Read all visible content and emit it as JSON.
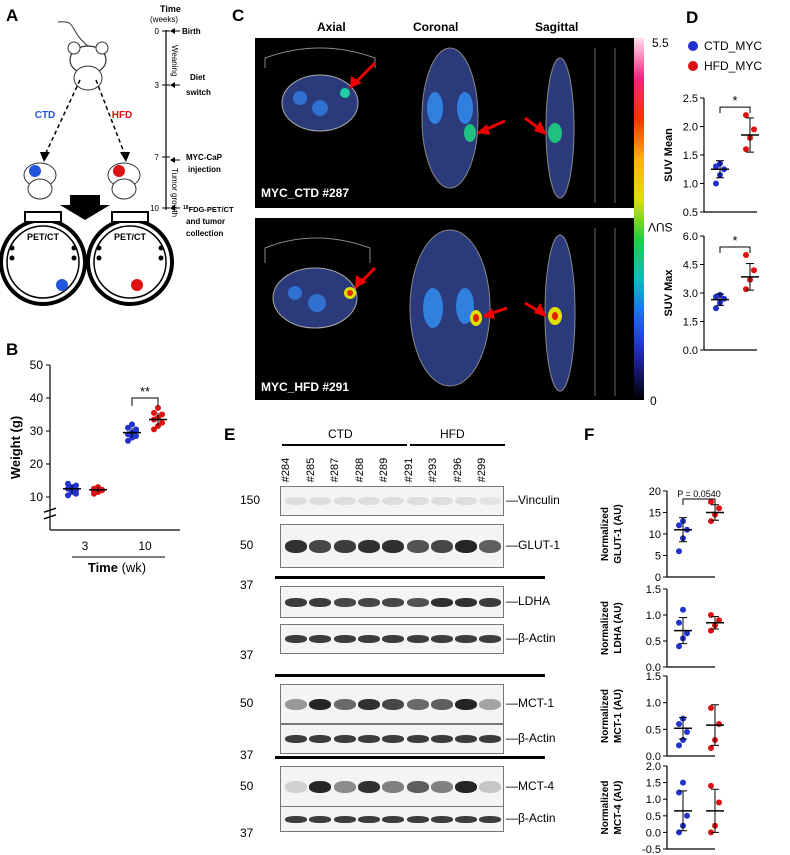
{
  "panel_letters": {
    "A": "A",
    "B": "B",
    "C": "C",
    "D": "D",
    "E": "E",
    "F": "F"
  },
  "panelA": {
    "time_header": "Time",
    "time_unit": "(weeks)",
    "ticks": [
      {
        "value": "0",
        "label": "Birth"
      },
      {
        "value": "3",
        "label": "Diet switch"
      },
      {
        "value": "7",
        "label": "MYC-CaP injection"
      },
      {
        "value": "10",
        "label": "18FDG-PET/CT and tumor collection"
      }
    ],
    "phase_weaning": "Weaning",
    "phase_tumor": "Tumor growth",
    "ctd_label": "CTD",
    "hfd_label": "HFD",
    "petct_label": "PET/CT",
    "ctd_color": "#2255dd",
    "hfd_color": "#dd1111"
  },
  "panelC": {
    "views": [
      "Axial",
      "Coronal",
      "Sagittal"
    ],
    "rows": [
      {
        "label": "MYC_CTD #287"
      },
      {
        "label": "MYC_HFD #291"
      }
    ],
    "colorbar_max": "5.5",
    "colorbar_min": "0",
    "colorbar_label": "SUV"
  },
  "panelE": {
    "group_ctd": "CTD",
    "group_hfd": "HFD",
    "lanes": [
      "#284",
      "#285",
      "#287",
      "#288",
      "#289",
      "#291",
      "#293",
      "#296",
      "#299"
    ],
    "blots": [
      {
        "name": "Vinculin",
        "marker": "150",
        "intensity": [
          0.15,
          0.15,
          0.15,
          0.15,
          0.15,
          0.15,
          0.15,
          0.15,
          0.12
        ]
      },
      {
        "name": "GLUT-1",
        "marker": "50",
        "intensity": [
          0.9,
          0.8,
          0.85,
          0.9,
          0.9,
          0.75,
          0.8,
          0.95,
          0.7
        ]
      },
      {
        "name": "LDHA",
        "marker": "37",
        "intensity": [
          0.85,
          0.85,
          0.8,
          0.8,
          0.8,
          0.75,
          0.9,
          0.9,
          0.85
        ]
      },
      {
        "name": "β-Actin",
        "marker": "37",
        "intensity": [
          0.85,
          0.85,
          0.85,
          0.85,
          0.85,
          0.85,
          0.85,
          0.85,
          0.85
        ]
      },
      {
        "name": "MCT-1",
        "marker": "50",
        "intensity": [
          0.45,
          0.95,
          0.65,
          0.9,
          0.8,
          0.65,
          0.7,
          0.95,
          0.4
        ]
      },
      {
        "name": "β-Actin",
        "marker": "37",
        "intensity": [
          0.85,
          0.85,
          0.85,
          0.85,
          0.85,
          0.85,
          0.85,
          0.85,
          0.85
        ]
      },
      {
        "name": "MCT-4",
        "marker": "50",
        "intensity": [
          0.2,
          0.95,
          0.5,
          0.9,
          0.55,
          0.7,
          0.55,
          0.95,
          0.25
        ]
      },
      {
        "name": "β-Actin",
        "marker": "37",
        "intensity": [
          0.85,
          0.85,
          0.85,
          0.85,
          0.85,
          0.85,
          0.85,
          0.85,
          0.85
        ]
      }
    ]
  },
  "chart_data": [
    {
      "id": "B",
      "type": "scatter",
      "ylabel": "Weight (g)",
      "xlabel": "Time",
      "xlabel_unit": "(wk)",
      "categories": [
        "3",
        "10"
      ],
      "ylim": [
        0,
        50
      ],
      "yticks": [
        10,
        20,
        30,
        40,
        50
      ],
      "series": [
        {
          "color": "#2233cc",
          "points": {
            "3": [
              10.5,
              11.5,
              12,
              12.5,
              13,
              13.5,
              14,
              12.8,
              11
            ],
            "10": [
              27,
              28,
              28.5,
              29,
              29.5,
              30,
              31,
              32,
              30.5
            ]
          }
        },
        {
          "color": "#dd1111",
          "points": {
            "3": [
              11,
              11.5,
              12,
              12.5,
              13,
              12.2,
              11.8
            ],
            "10": [
              30.5,
              31.5,
              32.5,
              33.5,
              34,
              35,
              35.5,
              37
            ]
          }
        }
      ],
      "means": {
        "3": [
          12.5,
          12.2
        ],
        "10": [
          29.5,
          33.5
        ]
      },
      "sds": {
        "3": [
          1.2,
          0.8
        ],
        "10": [
          1.5,
          2
        ]
      },
      "significance": "**"
    },
    {
      "id": "D1",
      "type": "scatter",
      "ylabel": "SUV Mean",
      "ylim": [
        0.5,
        2.5
      ],
      "yticks": [
        0.5,
        1.0,
        1.5,
        2.0,
        2.5
      ],
      "series": [
        {
          "name": "CTD_MYC",
          "color": "#2233cc",
          "values": [
            1.0,
            1.15,
            1.25,
            1.3,
            1.35
          ]
        },
        {
          "name": "HFD_MYC",
          "color": "#dd1111",
          "values": [
            1.6,
            1.8,
            1.95,
            2.2
          ]
        }
      ],
      "means": [
        1.25,
        1.85
      ],
      "sds": [
        0.15,
        0.3
      ],
      "significance": "*"
    },
    {
      "id": "D2",
      "type": "scatter",
      "ylabel": "SUV Max",
      "ylim": [
        0.0,
        6.0
      ],
      "yticks": [
        0.0,
        1.5,
        3.0,
        4.5,
        6.0
      ],
      "series": [
        {
          "color": "#2233cc",
          "values": [
            2.2,
            2.5,
            2.7,
            2.8,
            2.9
          ]
        },
        {
          "color": "#dd1111",
          "values": [
            3.2,
            3.7,
            4.2,
            5.0
          ]
        }
      ],
      "means": [
        2.65,
        3.85
      ],
      "sds": [
        0.3,
        0.7
      ],
      "significance": "*"
    },
    {
      "id": "F1",
      "type": "scatter",
      "ylabel": "Normalized GLUT-1 (AU)",
      "ylim": [
        0,
        20
      ],
      "yticks": [
        0,
        5,
        10,
        15,
        20
      ],
      "series": [
        {
          "color": "#2233cc",
          "values": [
            6,
            9,
            11,
            12,
            13
          ]
        },
        {
          "color": "#dd1111",
          "values": [
            13,
            14.5,
            16,
            17.5
          ]
        }
      ],
      "means": [
        11,
        15
      ],
      "sds": [
        2.8,
        1.8
      ],
      "annotation": "P = 0.0540"
    },
    {
      "id": "F2",
      "type": "scatter",
      "ylabel": "Normalized LDHA (AU)",
      "ylim": [
        0,
        1.5
      ],
      "yticks": [
        0,
        0.5,
        1.0,
        1.5
      ],
      "series": [
        {
          "color": "#2233cc",
          "values": [
            0.4,
            0.55,
            0.65,
            0.85,
            1.1
          ]
        },
        {
          "color": "#dd1111",
          "values": [
            0.7,
            0.8,
            0.9,
            1.0
          ]
        }
      ],
      "means": [
        0.7,
        0.85
      ],
      "sds": [
        0.25,
        0.12
      ]
    },
    {
      "id": "F3",
      "type": "scatter",
      "ylabel": "Normalized MCT-1 (AU)",
      "ylim": [
        0,
        1.5
      ],
      "yticks": [
        0,
        0.5,
        1.0,
        1.5
      ],
      "series": [
        {
          "color": "#2233cc",
          "values": [
            0.2,
            0.3,
            0.45,
            0.6,
            0.7
          ]
        },
        {
          "color": "#dd1111",
          "values": [
            0.15,
            0.3,
            0.6,
            0.9
          ]
        }
      ],
      "means": [
        0.52,
        0.58
      ],
      "sds": [
        0.2,
        0.38
      ]
    },
    {
      "id": "F4",
      "type": "scatter",
      "ylabel": "Normalized MCT-4 (AU)",
      "ylim": [
        -0.5,
        2.0
      ],
      "yticks": [
        -0.5,
        0,
        0.5,
        1.0,
        1.5,
        2.0
      ],
      "series": [
        {
          "color": "#2233cc",
          "values": [
            0.0,
            0.2,
            0.5,
            1.2,
            1.5
          ]
        },
        {
          "color": "#dd1111",
          "values": [
            0.0,
            0.2,
            0.9,
            1.4
          ]
        }
      ],
      "means": [
        0.65,
        0.65
      ],
      "sds": [
        0.6,
        0.65
      ]
    }
  ]
}
